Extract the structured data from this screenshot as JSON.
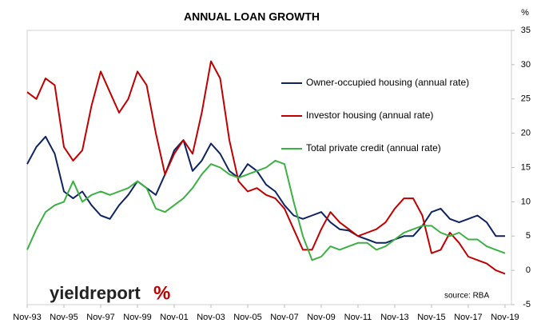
{
  "chart_data": {
    "type": "line",
    "title": "ANNUAL LOAN GROWTH",
    "y_unit": "%",
    "source": "source: RBA",
    "logo": {
      "text": "yieldreport",
      "symbol": "%"
    },
    "x": [
      1993.83,
      1994.33,
      1994.83,
      1995.33,
      1995.83,
      1996.33,
      1996.83,
      1997.33,
      1997.83,
      1998.33,
      1998.83,
      1999.33,
      1999.83,
      2000.33,
      2000.83,
      2001.33,
      2001.83,
      2002.33,
      2002.83,
      2003.33,
      2003.83,
      2004.33,
      2004.83,
      2005.33,
      2005.83,
      2006.33,
      2006.83,
      2007.33,
      2007.83,
      2008.33,
      2008.83,
      2009.33,
      2009.83,
      2010.33,
      2010.83,
      2011.33,
      2011.83,
      2012.33,
      2012.83,
      2013.33,
      2013.83,
      2014.33,
      2014.83,
      2015.33,
      2015.83,
      2016.33,
      2016.83,
      2017.33,
      2017.83,
      2018.33,
      2018.83,
      2019.33,
      2019.83
    ],
    "series": [
      {
        "name": "Owner-occupied housing (annual rate)",
        "color": "#0d2364",
        "values": [
          15.5,
          18,
          19.5,
          17,
          11.5,
          10.5,
          11.5,
          9.5,
          8,
          7.5,
          9.5,
          11,
          13,
          12,
          11,
          14,
          17.5,
          19,
          14.5,
          16,
          18.5,
          17,
          14.5,
          13.5,
          15.5,
          14.5,
          12.5,
          11.5,
          9.5,
          8,
          7.5,
          8,
          8.5,
          7,
          6,
          5.8,
          5,
          4.5,
          4,
          4,
          4.5,
          5,
          5,
          6.5,
          8.5,
          9,
          7.5,
          7,
          7.5,
          8,
          7,
          5,
          5
        ]
      },
      {
        "name": "Investor housing (annual rate)",
        "color": "#c00000",
        "values": [
          26,
          25,
          28,
          27,
          18,
          16,
          17.5,
          24,
          29,
          26,
          23,
          25,
          29,
          27,
          20,
          14,
          17,
          19,
          17,
          23,
          30.5,
          28,
          19,
          13,
          11.5,
          12,
          11,
          10.5,
          9,
          6,
          3,
          3,
          6,
          8.5,
          7,
          6,
          5,
          5.5,
          6,
          7,
          9,
          10.5,
          10.5,
          8,
          2.5,
          3,
          5.5,
          4,
          2,
          1.5,
          1,
          0,
          -0.5
        ]
      },
      {
        "name": "Total private credit (annual rate)",
        "color": "#3cb043",
        "values": [
          3,
          6,
          8.5,
          9.5,
          10,
          13,
          10,
          11,
          11.5,
          11,
          11.5,
          12,
          13,
          12,
          9,
          8.5,
          9.5,
          10.5,
          12,
          14,
          15.5,
          15,
          14,
          13.5,
          14,
          14.5,
          15,
          16,
          15.5,
          10,
          5,
          1.5,
          2,
          3.5,
          3,
          3.5,
          4,
          4,
          3,
          3.5,
          4.5,
          5.5,
          6,
          6.5,
          6.5,
          5.5,
          5,
          5.5,
          4.5,
          4.5,
          3.5,
          3,
          2.5
        ]
      }
    ],
    "xlim": [
      1993.83,
      2020.18
    ],
    "xticks": [
      {
        "value": 1993.83,
        "label": "Nov-93"
      },
      {
        "value": 1995.83,
        "label": "Nov-95"
      },
      {
        "value": 1997.83,
        "label": "Nov-97"
      },
      {
        "value": 1999.83,
        "label": "Nov-99"
      },
      {
        "value": 2001.83,
        "label": "Nov-01"
      },
      {
        "value": 2003.83,
        "label": "Nov-03"
      },
      {
        "value": 2005.83,
        "label": "Nov-05"
      },
      {
        "value": 2007.83,
        "label": "Nov-07"
      },
      {
        "value": 2009.83,
        "label": "Nov-09"
      },
      {
        "value": 2011.83,
        "label": "Nov-11"
      },
      {
        "value": 2013.83,
        "label": "Nov-13"
      },
      {
        "value": 2015.83,
        "label": "Nov-15"
      },
      {
        "value": 2017.83,
        "label": "Nov-17"
      },
      {
        "value": 2019.83,
        "label": "Nov-19"
      }
    ],
    "ylim": [
      -5,
      35
    ],
    "yticks": [
      -5,
      0,
      5,
      10,
      15,
      20,
      25,
      30,
      35
    ]
  }
}
